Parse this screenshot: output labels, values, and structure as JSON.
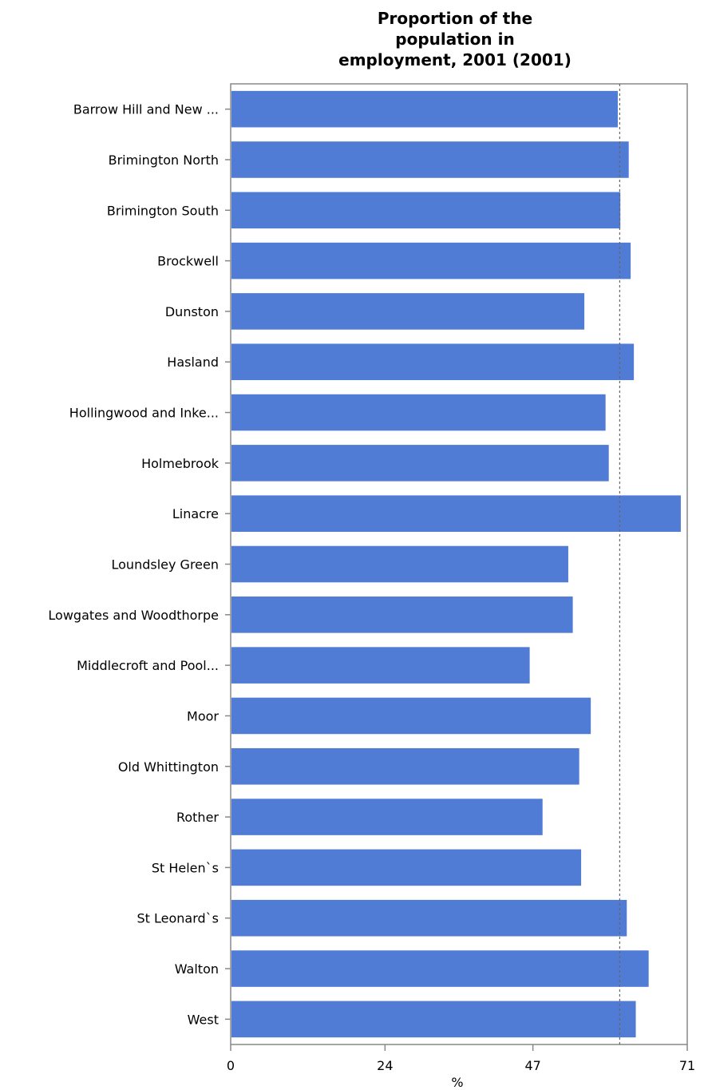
{
  "chart_data": {
    "type": "bar",
    "orientation": "horizontal",
    "title": "Proportion of the population in employment, 2001 (2001)",
    "title_lines": [
      "Proportion of the",
      "population in",
      "employment, 2001 (2001)"
    ],
    "xlabel": "%",
    "ylabel": "",
    "xlim": [
      0,
      71
    ],
    "x_ticks": [
      0,
      24,
      47,
      71
    ],
    "categories": [
      "Barrow Hill and New ...",
      "Brimington North",
      "Brimington South",
      "Brockwell",
      "Dunston",
      "Hasland",
      "Hollingwood and Inke...",
      "Holmebrook",
      "Linacre",
      "Loundsley Green",
      "Lowgates and Woodthorpe",
      "Middlecroft and Pool...",
      "Moor",
      "Old Whittington",
      "Rother",
      "St Helen`s",
      "St Leonard`s",
      "Walton",
      "West"
    ],
    "values": [
      60.2,
      61.9,
      60.6,
      62.2,
      55.0,
      62.7,
      58.3,
      58.8,
      70.0,
      52.5,
      53.2,
      46.5,
      56.0,
      54.2,
      48.5,
      54.5,
      61.6,
      65.0,
      63.0
    ],
    "reference_line": 60.5,
    "grid": false,
    "legend": "none",
    "bar_color": "#517cd6",
    "axis_color": "#888888",
    "reference_line_color": "#666666"
  }
}
